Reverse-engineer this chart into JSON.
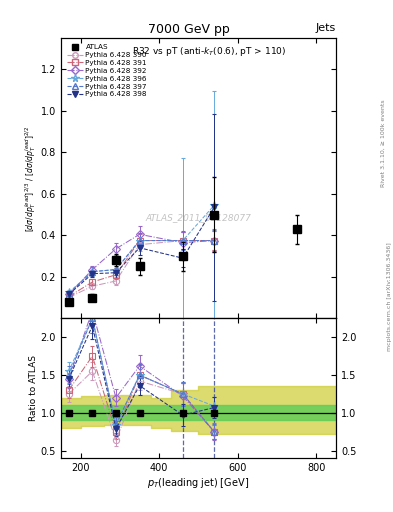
{
  "title_top": "7000 GeV pp",
  "title_right": "Jets",
  "plot_title": "R32 vs pT (anti-k_{T}(0.6), pT > 110)",
  "ylabel_main": "[d#sigma/dp_{T}^{lead}]^{2/3} / [d#sigma/dp_{T}^{lead}]^{2/2}",
  "ylabel_ratio": "Ratio to ATLAS",
  "xlabel": "p_{T}(leading jet) [GeV]",
  "watermark": "ATLAS_2011_S9128077",
  "xlim": [
    150,
    850
  ],
  "ylim_main": [
    0.0,
    1.35
  ],
  "ylim_ratio": [
    0.4,
    2.25
  ],
  "atlas_x": [
    170,
    230,
    290,
    350,
    460,
    540,
    750
  ],
  "atlas_y": [
    0.08,
    0.1,
    0.28,
    0.25,
    0.3,
    0.5,
    0.43
  ],
  "atlas_yerr": [
    0.015,
    0.015,
    0.03,
    0.04,
    0.07,
    0.18,
    0.07
  ],
  "py390_x": [
    170,
    230,
    290,
    350,
    460,
    540
  ],
  "py390_y": [
    0.1,
    0.155,
    0.18,
    0.355,
    0.375,
    0.375
  ],
  "py390_yerr": [
    0.008,
    0.012,
    0.02,
    0.03,
    0.04,
    0.045
  ],
  "py391_x": [
    170,
    230,
    290,
    350,
    460,
    540
  ],
  "py391_y": [
    0.105,
    0.175,
    0.21,
    0.375,
    0.375,
    0.375
  ],
  "py391_yerr": [
    0.008,
    0.014,
    0.022,
    0.032,
    0.042,
    0.047
  ],
  "py392_x": [
    170,
    230,
    290,
    350,
    460,
    540
  ],
  "py392_y": [
    0.115,
    0.235,
    0.335,
    0.405,
    0.365,
    0.375
  ],
  "py392_yerr": [
    0.009,
    0.018,
    0.03,
    0.04,
    0.05,
    0.055
  ],
  "py396_x": [
    170,
    230,
    290,
    350,
    460,
    540
  ],
  "py396_y": [
    0.125,
    0.225,
    0.235,
    0.375,
    0.375,
    0.545
  ],
  "py396_yerr": [
    0.01,
    0.02,
    0.025,
    0.035,
    0.4,
    0.55
  ],
  "py397_x": [
    170,
    230,
    290,
    350,
    460,
    540
  ],
  "py397_y": [
    0.12,
    0.225,
    0.235,
    0.375,
    0.375,
    0.375
  ],
  "py397_yerr": [
    0.01,
    0.02,
    0.025,
    0.035,
    0.045,
    0.05
  ],
  "py398_x": [
    170,
    230,
    290,
    350,
    460,
    540
  ],
  "py398_y": [
    0.115,
    0.215,
    0.22,
    0.34,
    0.29,
    0.535
  ],
  "py398_yerr": [
    0.009,
    0.018,
    0.024,
    0.033,
    0.042,
    0.45
  ],
  "c390": "#cc99bb",
  "c391": "#cc6677",
  "c392": "#9966cc",
  "c396": "#66aadd",
  "c397": "#5577cc",
  "c398": "#223388",
  "py390_ratio_y": [
    1.25,
    1.55,
    0.64,
    1.42,
    1.25,
    0.75
  ],
  "py391_ratio_y": [
    1.3,
    1.75,
    0.75,
    1.5,
    1.25,
    0.75
  ],
  "py392_ratio_y": [
    1.45,
    2.35,
    1.2,
    1.62,
    1.22,
    0.75
  ],
  "py396_ratio_y": [
    1.55,
    2.25,
    0.84,
    1.5,
    1.25,
    1.09
  ],
  "py397_ratio_y": [
    1.5,
    2.25,
    0.84,
    1.5,
    1.25,
    0.75
  ],
  "py398_ratio_y": [
    1.45,
    2.15,
    0.79,
    1.36,
    0.97,
    1.07
  ],
  "py390_ratio_yerr": [
    0.1,
    0.12,
    0.08,
    0.12,
    0.14,
    0.09
  ],
  "py391_ratio_yerr": [
    0.1,
    0.14,
    0.09,
    0.13,
    0.14,
    0.09
  ],
  "py392_ratio_yerr": [
    0.12,
    0.2,
    0.11,
    0.15,
    0.18,
    0.11
  ],
  "py396_ratio_yerr": [
    0.12,
    0.2,
    0.1,
    0.14,
    0.16,
    0.12
  ],
  "py397_ratio_yerr": [
    0.12,
    0.2,
    0.1,
    0.14,
    0.16,
    0.1
  ],
  "py398_ratio_yerr": [
    0.11,
    0.18,
    0.1,
    0.13,
    0.15,
    0.14
  ],
  "band_x_edges": [
    150,
    200,
    260,
    320,
    380,
    430,
    500,
    560,
    850
  ],
  "green_lo": [
    0.9,
    0.9,
    0.9,
    0.9,
    0.9,
    0.9,
    0.9,
    0.9
  ],
  "green_hi": [
    1.1,
    1.1,
    1.1,
    1.1,
    1.1,
    1.1,
    1.1,
    1.1
  ],
  "yellow_lo": [
    0.8,
    0.82,
    0.84,
    0.84,
    0.8,
    0.76,
    0.72,
    0.72
  ],
  "yellow_hi": [
    1.2,
    1.22,
    1.24,
    1.24,
    1.2,
    1.3,
    1.35,
    1.35
  ],
  "vline_x1": 460,
  "vline_x2": 540,
  "green_color": "#55cc55",
  "yellow_color": "#cccc33"
}
